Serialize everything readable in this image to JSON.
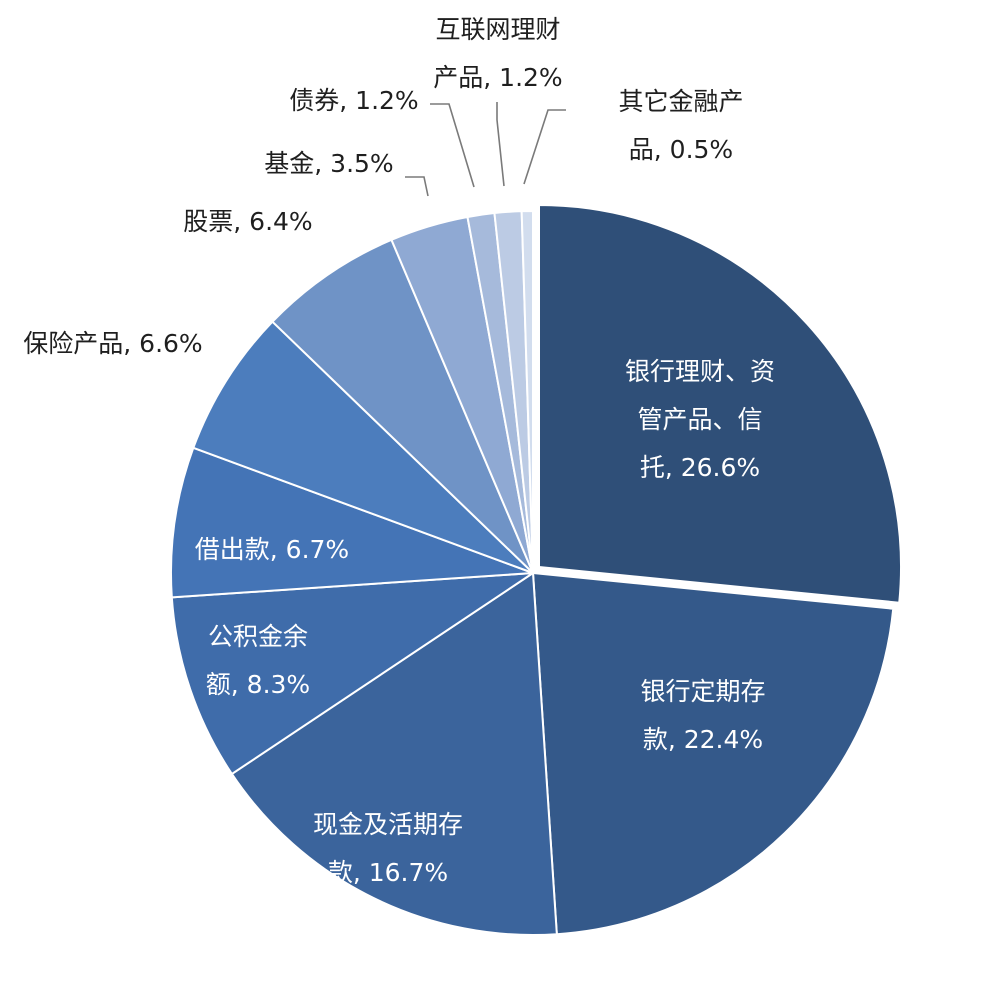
{
  "chart_data": {
    "type": "pie",
    "title": "",
    "start_angle": 0,
    "direction": "clockwise",
    "slices": [
      {
        "name": "银行理财、资管产品、信托",
        "value": 26.6,
        "label_lines": [
          "银行理财、资",
          "管产品、信",
          "托, 26.6%"
        ],
        "color": "#2f4f78",
        "label_inside": true
      },
      {
        "name": "银行定期存款",
        "value": 22.4,
        "label_lines": [
          "银行定期存",
          "款, 22.4%"
        ],
        "color": "#34598a",
        "label_inside": true
      },
      {
        "name": "现金及活期存款",
        "value": 16.7,
        "label_lines": [
          "现金及活期存",
          "款, 16.7%"
        ],
        "color": "#3b649c",
        "label_inside": true
      },
      {
        "name": "公积金余额",
        "value": 8.3,
        "label_lines": [
          "公积金余",
          "额, 8.3%"
        ],
        "color": "#3f6caa",
        "label_inside": true
      },
      {
        "name": "借出款",
        "value": 6.7,
        "label_lines": [
          "借出款, 6.7%"
        ],
        "color": "#4474b6",
        "label_inside": true
      },
      {
        "name": "保险产品",
        "value": 6.6,
        "label_lines": [
          "保险产品, 6.6%"
        ],
        "color": "#4c7dbd",
        "label_inside": false
      },
      {
        "name": "股票",
        "value": 6.4,
        "label_lines": [
          "股票, 6.4%"
        ],
        "color": "#6f93c6",
        "label_inside": false
      },
      {
        "name": "基金",
        "value": 3.5,
        "label_lines": [
          "基金, 3.5%"
        ],
        "color": "#8fa9d3",
        "label_inside": false
      },
      {
        "name": "债券",
        "value": 1.2,
        "label_lines": [
          "债券, 1.2%"
        ],
        "color": "#a6badb",
        "label_inside": false
      },
      {
        "name": "互联网理财产品",
        "value": 1.2,
        "label_lines": [
          "互联网理财",
          "产品, 1.2%"
        ],
        "color": "#bccbe4",
        "label_inside": false
      },
      {
        "name": "其它金融产品",
        "value": 0.5,
        "label_lines": [
          "其它金融产",
          "品, 0.5%"
        ],
        "color": "#d2ddee",
        "label_inside": false
      }
    ]
  }
}
